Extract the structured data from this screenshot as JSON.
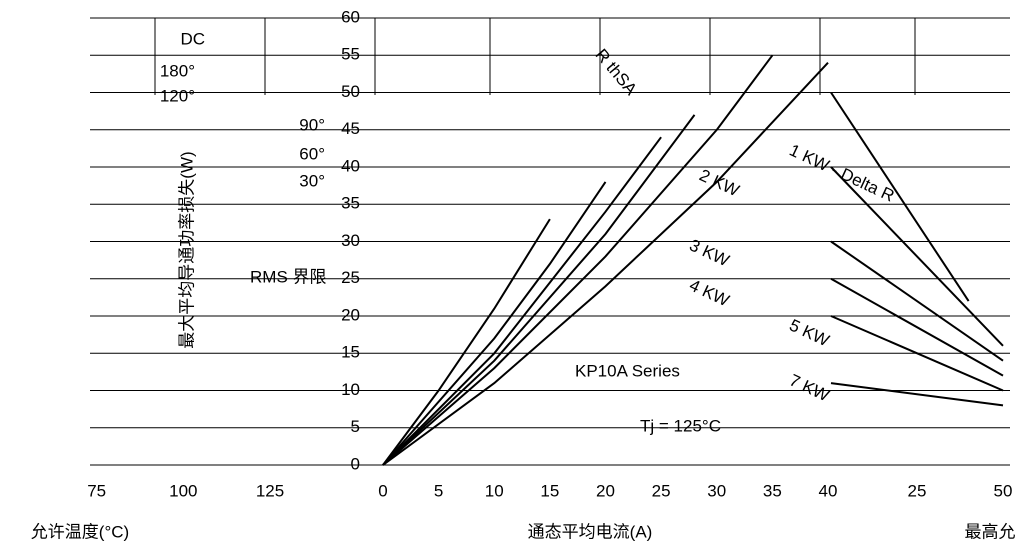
{
  "chart_data": [
    {
      "type": "line",
      "ylabel": "最大平均导通功率损失(W)",
      "xlabel": "通态平均电流(A)",
      "xlim": [
        0,
        40
      ],
      "ylim": [
        0,
        60
      ],
      "xticks": [
        0,
        5,
        10,
        15,
        20,
        25,
        30,
        35,
        40
      ],
      "yticks": [
        0,
        5,
        10,
        15,
        20,
        25,
        30,
        35,
        40,
        45,
        50,
        55,
        60
      ],
      "grid": true,
      "annotations": [
        "RMS 界限",
        "KP10A Series",
        "Tj = 125°C"
      ],
      "series": [
        {
          "name": "DC",
          "color": "#000000",
          "x": [
            0,
            10,
            20,
            30,
            40
          ],
          "values": [
            0,
            11,
            24,
            38,
            54
          ]
        },
        {
          "name": "180°",
          "color": "#000000",
          "x": [
            0,
            10,
            20,
            30,
            35
          ],
          "values": [
            0,
            13,
            28,
            45,
            55
          ]
        },
        {
          "name": "120°",
          "color": "#000000",
          "x": [
            0,
            10,
            20,
            28
          ],
          "values": [
            0,
            14,
            31,
            47
          ]
        },
        {
          "name": "90°",
          "color": "#000000",
          "x": [
            0,
            10,
            20,
            25
          ],
          "values": [
            0,
            15,
            34,
            44
          ]
        },
        {
          "name": "60°",
          "color": "#000000",
          "x": [
            0,
            10,
            15,
            20
          ],
          "values": [
            0,
            17,
            27,
            38
          ]
        },
        {
          "name": "30°",
          "color": "#000000",
          "x": [
            0,
            5,
            10,
            15
          ],
          "values": [
            0,
            10,
            21,
            33
          ]
        }
      ]
    },
    {
      "type": "line",
      "xlabel": "允许温度(°C)",
      "xlim": [
        50,
        125
      ],
      "xticks": [
        75,
        100,
        125
      ],
      "series": []
    },
    {
      "type": "line",
      "xlabel": "最高允",
      "xlim": [
        0,
        50
      ],
      "ylim": [
        0,
        60
      ],
      "xticks": [
        25,
        50
      ],
      "annotations": [
        "R thSA"
      ],
      "series": [
        {
          "name": "1 KW - Delta R",
          "color": "#000000",
          "x": [
            0,
            40
          ],
          "values": [
            50,
            22
          ]
        },
        {
          "name": "2 KW",
          "color": "#000000",
          "x": [
            0,
            50
          ],
          "values": [
            40,
            16
          ]
        },
        {
          "name": "3 KW",
          "color": "#000000",
          "x": [
            0,
            50
          ],
          "values": [
            30,
            14
          ]
        },
        {
          "name": "4 KW",
          "color": "#000000",
          "x": [
            0,
            50
          ],
          "values": [
            25,
            12
          ]
        },
        {
          "name": "5 KW",
          "color": "#000000",
          "x": [
            0,
            50
          ],
          "values": [
            20,
            10
          ]
        },
        {
          "name": "7 KW",
          "color": "#000000",
          "x": [
            0,
            50
          ],
          "values": [
            11,
            8
          ]
        }
      ]
    }
  ]
}
